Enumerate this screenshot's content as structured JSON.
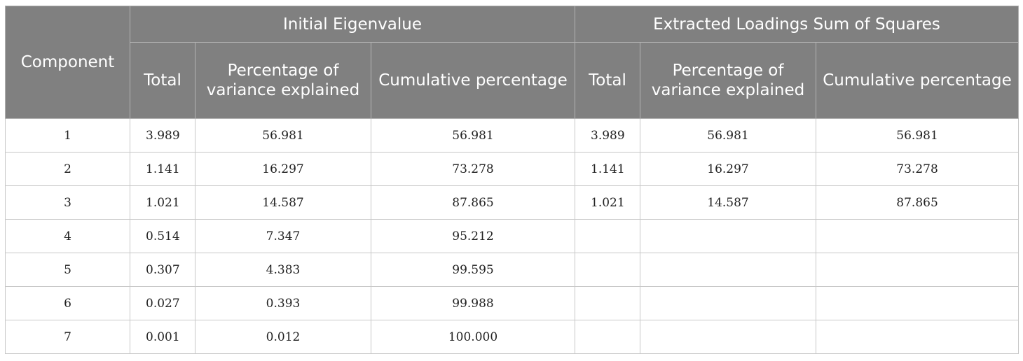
{
  "header": {
    "component": "Component",
    "group_initial": "Initial Eigenvalue",
    "group_extracted": "Extracted Loadings Sum of Squares",
    "total": "Total",
    "pct_variance": "Percentage of variance explained",
    "cumulative": "Cumulative percentage"
  },
  "rows": [
    {
      "component": "1",
      "init_total": "3.989",
      "init_pct": "56.981",
      "init_cum": "56.981",
      "ext_total": "3.989",
      "ext_pct": "56.981",
      "ext_cum": "56.981"
    },
    {
      "component": "2",
      "init_total": "1.141",
      "init_pct": "16.297",
      "init_cum": "73.278",
      "ext_total": "1.141",
      "ext_pct": "16.297",
      "ext_cum": "73.278"
    },
    {
      "component": "3",
      "init_total": "1.021",
      "init_pct": "14.587",
      "init_cum": "87.865",
      "ext_total": "1.021",
      "ext_pct": "14.587",
      "ext_cum": "87.865"
    },
    {
      "component": "4",
      "init_total": "0.514",
      "init_pct": "7.347",
      "init_cum": "95.212",
      "ext_total": "",
      "ext_pct": "",
      "ext_cum": ""
    },
    {
      "component": "5",
      "init_total": "0.307",
      "init_pct": "4.383",
      "init_cum": "99.595",
      "ext_total": "",
      "ext_pct": "",
      "ext_cum": ""
    },
    {
      "component": "6",
      "init_total": "0.027",
      "init_pct": "0.393",
      "init_cum": "99.988",
      "ext_total": "",
      "ext_pct": "",
      "ext_cum": ""
    },
    {
      "component": "7",
      "init_total": "0.001",
      "init_pct": "0.012",
      "init_cum": "100.000",
      "ext_total": "",
      "ext_pct": "",
      "ext_cum": ""
    }
  ],
  "colors": {
    "header_bg": "#808080",
    "header_text": "#ffffff",
    "grid": "#c8c8c8"
  }
}
